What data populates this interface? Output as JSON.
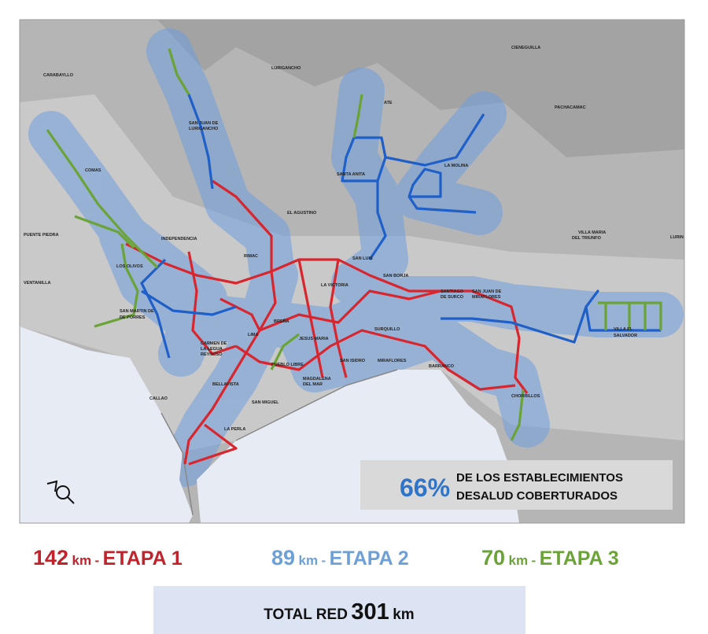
{
  "map": {
    "labels": [
      "CARABAYLLO",
      "LURIGANCHO",
      "CIENEGUILLA",
      "SAN JUAN DE",
      "LURIGANCHO",
      "ATE",
      "PACHACAMAC",
      "COMAS",
      "SANTA ANITA",
      "LA MOLINA",
      "EL AGUSTINO",
      "PUENTE PIEDRA",
      "INDEPENDENCIA",
      "VILLA MARIA",
      "DEL TRIUNFO",
      "RIMAC",
      "SAN LUIS",
      "LOS OLIVOS",
      "LA VICTORIA",
      "SAN BORJA",
      "VENTANILLA",
      "SANTIAGO",
      "DE SURCO",
      "SAN JUAN DE",
      "MIRAFLORES",
      "SAN MARTIN DE",
      "DE PORRES",
      "BREÑA",
      "SURQUILLO",
      "VILLA EL",
      "SALVADOR",
      "CARMEN DE",
      "LA LEGUA",
      "REYNOSO",
      "JESUS MARIA",
      "LIMA",
      "PUEBLO LIBRE",
      "SAN ISIDRO",
      "MIRAFLORES",
      "BARRANCO",
      "CALLAO",
      "BELLAVISTA",
      "MAGDALENA",
      "DEL MAR",
      "CHORRILLOS",
      "SAN MIGUEL",
      "LA PERLA",
      "LURIN"
    ],
    "coverage": {
      "percent": "66%",
      "line1": "DE LOS ESTABLECIMIENTOS",
      "line2": "DESALUD COBERTURADOS"
    }
  },
  "summary": {
    "stages": [
      {
        "km_value": 142,
        "unit": "km",
        "sep": "-",
        "name": "ETAPA 1"
      },
      {
        "km_value": 89,
        "unit": "km",
        "sep": "-",
        "name": "ETAPA 2"
      },
      {
        "km_value": 70,
        "unit": "km",
        "sep": "-",
        "name": "ETAPA 3"
      }
    ],
    "total": {
      "label": "TOTAL RED",
      "km_value": 301,
      "unit": "km"
    }
  }
}
